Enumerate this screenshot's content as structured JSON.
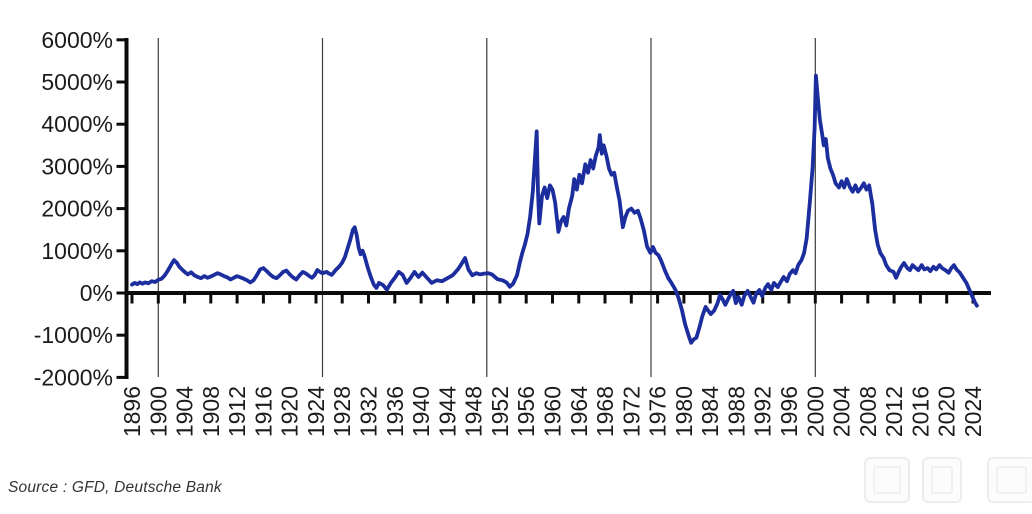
{
  "source_note": "Source : GFD, Deutsche Bank",
  "watermark": {
    "boxes": 3,
    "color": "#ededed"
  },
  "chart_data": {
    "type": "line",
    "title": "",
    "xlabel": "",
    "ylabel": "",
    "grid": "off",
    "legend": "none",
    "axis_position": "x-axis-at-zero",
    "xlim": [
      1896,
      2025
    ],
    "ylim": [
      -2000,
      6000
    ],
    "y_tick_suffix": "%",
    "y_ticks": [
      6000,
      5000,
      4000,
      3000,
      2000,
      1000,
      0,
      -1000,
      -2000
    ],
    "x_tick_labels": [
      1896,
      1900,
      1904,
      1908,
      1912,
      1916,
      1920,
      1924,
      1928,
      1932,
      1936,
      1940,
      1944,
      1948,
      1952,
      1956,
      1960,
      1964,
      1968,
      1972,
      1976,
      1980,
      1984,
      1988,
      1992,
      1996,
      2000,
      2004,
      2008,
      2012,
      2016,
      2020,
      2024
    ],
    "reference_line_years": [
      1900,
      1925,
      1950,
      1975,
      2000
    ],
    "series": [
      {
        "name": "rolling-return-percent",
        "color": "#1c2d9e",
        "points": [
          [
            1896.0,
            200
          ],
          [
            1896.4,
            240
          ],
          [
            1896.8,
            210
          ],
          [
            1897.2,
            250
          ],
          [
            1897.6,
            220
          ],
          [
            1898.0,
            250
          ],
          [
            1898.5,
            230
          ],
          [
            1899.0,
            280
          ],
          [
            1899.5,
            260
          ],
          [
            1900.0,
            310
          ],
          [
            1900.5,
            340
          ],
          [
            1901.0,
            420
          ],
          [
            1901.5,
            540
          ],
          [
            1902.0,
            680
          ],
          [
            1902.4,
            780
          ],
          [
            1902.8,
            720
          ],
          [
            1903.2,
            620
          ],
          [
            1903.6,
            560
          ],
          [
            1904.0,
            500
          ],
          [
            1904.5,
            440
          ],
          [
            1905.0,
            490
          ],
          [
            1905.5,
            420
          ],
          [
            1906.0,
            380
          ],
          [
            1906.5,
            350
          ],
          [
            1907.0,
            400
          ],
          [
            1907.5,
            360
          ],
          [
            1908.0,
            390
          ],
          [
            1908.5,
            430
          ],
          [
            1909.0,
            470
          ],
          [
            1909.5,
            440
          ],
          [
            1910.0,
            400
          ],
          [
            1910.5,
            370
          ],
          [
            1911.0,
            320
          ],
          [
            1911.5,
            360
          ],
          [
            1912.0,
            400
          ],
          [
            1912.5,
            370
          ],
          [
            1913.0,
            340
          ],
          [
            1913.5,
            300
          ],
          [
            1914.0,
            250
          ],
          [
            1914.5,
            300
          ],
          [
            1915.0,
            420
          ],
          [
            1915.5,
            560
          ],
          [
            1916.0,
            590
          ],
          [
            1916.5,
            520
          ],
          [
            1917.0,
            440
          ],
          [
            1917.5,
            380
          ],
          [
            1918.0,
            350
          ],
          [
            1918.5,
            420
          ],
          [
            1919.0,
            500
          ],
          [
            1919.5,
            530
          ],
          [
            1920.0,
            440
          ],
          [
            1920.5,
            370
          ],
          [
            1921.0,
            320
          ],
          [
            1921.5,
            420
          ],
          [
            1922.0,
            500
          ],
          [
            1922.5,
            460
          ],
          [
            1923.0,
            400
          ],
          [
            1923.4,
            360
          ],
          [
            1923.8,
            420
          ],
          [
            1924.2,
            545
          ],
          [
            1924.6,
            500
          ],
          [
            1925.0,
            470
          ],
          [
            1925.6,
            500
          ],
          [
            1926.0,
            460
          ],
          [
            1926.4,
            430
          ],
          [
            1927.0,
            545
          ],
          [
            1927.5,
            620
          ],
          [
            1928.0,
            720
          ],
          [
            1928.4,
            850
          ],
          [
            1928.8,
            1050
          ],
          [
            1929.2,
            1250
          ],
          [
            1929.6,
            1490
          ],
          [
            1929.9,
            1560
          ],
          [
            1930.2,
            1370
          ],
          [
            1930.5,
            1070
          ],
          [
            1930.8,
            920
          ],
          [
            1931.1,
            1000
          ],
          [
            1931.4,
            870
          ],
          [
            1931.9,
            590
          ],
          [
            1932.4,
            360
          ],
          [
            1932.8,
            200
          ],
          [
            1933.2,
            120
          ],
          [
            1933.6,
            240
          ],
          [
            1934.2,
            190
          ],
          [
            1934.8,
            80
          ],
          [
            1935.4,
            240
          ],
          [
            1936.0,
            360
          ],
          [
            1936.6,
            500
          ],
          [
            1937.2,
            430
          ],
          [
            1937.8,
            240
          ],
          [
            1938.4,
            360
          ],
          [
            1939.0,
            500
          ],
          [
            1939.6,
            380
          ],
          [
            1940.2,
            480
          ],
          [
            1940.8,
            380
          ],
          [
            1941.6,
            240
          ],
          [
            1942.4,
            300
          ],
          [
            1943.2,
            280
          ],
          [
            1944.0,
            350
          ],
          [
            1944.8,
            420
          ],
          [
            1945.6,
            560
          ],
          [
            1946.2,
            700
          ],
          [
            1946.7,
            830
          ],
          [
            1947.2,
            560
          ],
          [
            1947.8,
            420
          ],
          [
            1948.4,
            470
          ],
          [
            1949.0,
            440
          ],
          [
            1949.6,
            460
          ],
          [
            1950.2,
            470
          ],
          [
            1950.8,
            440
          ],
          [
            1951.6,
            330
          ],
          [
            1952.4,
            300
          ],
          [
            1953.0,
            250
          ],
          [
            1953.5,
            150
          ],
          [
            1954.0,
            220
          ],
          [
            1954.6,
            420
          ],
          [
            1955.0,
            700
          ],
          [
            1955.4,
            950
          ],
          [
            1955.8,
            1150
          ],
          [
            1956.2,
            1400
          ],
          [
            1956.6,
            1800
          ],
          [
            1957.0,
            2400
          ],
          [
            1957.3,
            3100
          ],
          [
            1957.6,
            3830
          ],
          [
            1957.8,
            2400
          ],
          [
            1958.0,
            1650
          ],
          [
            1958.4,
            2300
          ],
          [
            1958.8,
            2500
          ],
          [
            1959.2,
            2250
          ],
          [
            1959.6,
            2550
          ],
          [
            1960.0,
            2450
          ],
          [
            1960.4,
            2150
          ],
          [
            1960.9,
            1450
          ],
          [
            1961.3,
            1700
          ],
          [
            1961.7,
            1800
          ],
          [
            1962.1,
            1600
          ],
          [
            1962.5,
            2000
          ],
          [
            1963.0,
            2300
          ],
          [
            1963.3,
            2700
          ],
          [
            1963.7,
            2450
          ],
          [
            1964.1,
            2800
          ],
          [
            1964.5,
            2600
          ],
          [
            1965.0,
            3050
          ],
          [
            1965.4,
            2850
          ],
          [
            1965.8,
            3150
          ],
          [
            1966.2,
            2950
          ],
          [
            1966.6,
            3250
          ],
          [
            1967.0,
            3450
          ],
          [
            1967.2,
            3740
          ],
          [
            1967.5,
            3300
          ],
          [
            1967.8,
            3500
          ],
          [
            1968.2,
            3250
          ],
          [
            1968.6,
            2950
          ],
          [
            1969.0,
            2800
          ],
          [
            1969.4,
            2850
          ],
          [
            1969.8,
            2500
          ],
          [
            1970.2,
            2200
          ],
          [
            1970.7,
            1560
          ],
          [
            1971.1,
            1800
          ],
          [
            1971.5,
            1950
          ],
          [
            1972.0,
            2000
          ],
          [
            1972.5,
            1900
          ],
          [
            1973.0,
            1950
          ],
          [
            1973.4,
            1770
          ],
          [
            1973.9,
            1490
          ],
          [
            1974.4,
            1100
          ],
          [
            1974.9,
            950
          ],
          [
            1975.3,
            1090
          ],
          [
            1975.7,
            950
          ],
          [
            1976.1,
            900
          ],
          [
            1976.5,
            780
          ],
          [
            1977.1,
            540
          ],
          [
            1977.6,
            360
          ],
          [
            1978.1,
            240
          ],
          [
            1978.7,
            80
          ],
          [
            1979.2,
            -120
          ],
          [
            1979.7,
            -400
          ],
          [
            1980.2,
            -750
          ],
          [
            1980.7,
            -1000
          ],
          [
            1981.1,
            -1180
          ],
          [
            1981.5,
            -1100
          ],
          [
            1981.9,
            -1060
          ],
          [
            1982.4,
            -800
          ],
          [
            1982.8,
            -550
          ],
          [
            1983.3,
            -330
          ],
          [
            1983.7,
            -420
          ],
          [
            1984.1,
            -500
          ],
          [
            1984.6,
            -420
          ],
          [
            1985.1,
            -250
          ],
          [
            1985.5,
            -50
          ],
          [
            1985.9,
            -150
          ],
          [
            1986.3,
            -280
          ],
          [
            1986.8,
            -120
          ],
          [
            1987.2,
            0
          ],
          [
            1987.5,
            50
          ],
          [
            1987.9,
            -240
          ],
          [
            1988.3,
            -90
          ],
          [
            1988.8,
            -280
          ],
          [
            1989.2,
            -70
          ],
          [
            1989.7,
            50
          ],
          [
            1990.1,
            -70
          ],
          [
            1990.6,
            -230
          ],
          [
            1991.0,
            -20
          ],
          [
            1991.5,
            70
          ],
          [
            1991.9,
            -70
          ],
          [
            1992.4,
            120
          ],
          [
            1992.8,
            210
          ],
          [
            1993.3,
            70
          ],
          [
            1993.7,
            240
          ],
          [
            1994.3,
            140
          ],
          [
            1994.8,
            280
          ],
          [
            1995.2,
            380
          ],
          [
            1995.7,
            280
          ],
          [
            1996.1,
            450
          ],
          [
            1996.6,
            540
          ],
          [
            1997.0,
            470
          ],
          [
            1997.4,
            660
          ],
          [
            1997.9,
            780
          ],
          [
            1998.3,
            950
          ],
          [
            1998.7,
            1300
          ],
          [
            1999.2,
            2200
          ],
          [
            1999.6,
            3000
          ],
          [
            1999.9,
            3900
          ],
          [
            2000.1,
            5150
          ],
          [
            2000.4,
            4600
          ],
          [
            2000.7,
            4100
          ],
          [
            2001.0,
            3800
          ],
          [
            2001.3,
            3500
          ],
          [
            2001.6,
            3650
          ],
          [
            2001.9,
            3200
          ],
          [
            2002.3,
            2950
          ],
          [
            2002.7,
            2800
          ],
          [
            2003.1,
            2600
          ],
          [
            2003.6,
            2500
          ],
          [
            2004.0,
            2650
          ],
          [
            2004.4,
            2500
          ],
          [
            2004.8,
            2700
          ],
          [
            2005.3,
            2500
          ],
          [
            2005.7,
            2400
          ],
          [
            2006.1,
            2550
          ],
          [
            2006.5,
            2400
          ],
          [
            2007.0,
            2500
          ],
          [
            2007.4,
            2600
          ],
          [
            2007.8,
            2450
          ],
          [
            2008.2,
            2550
          ],
          [
            2008.7,
            2100
          ],
          [
            2009.1,
            1500
          ],
          [
            2009.5,
            1150
          ],
          [
            2009.9,
            950
          ],
          [
            2010.4,
            830
          ],
          [
            2010.8,
            660
          ],
          [
            2011.3,
            540
          ],
          [
            2011.9,
            500
          ],
          [
            2012.3,
            360
          ],
          [
            2012.7,
            500
          ],
          [
            2013.1,
            620
          ],
          [
            2013.5,
            710
          ],
          [
            2014.0,
            590
          ],
          [
            2014.4,
            540
          ],
          [
            2014.8,
            660
          ],
          [
            2015.3,
            590
          ],
          [
            2015.7,
            540
          ],
          [
            2016.2,
            660
          ],
          [
            2016.6,
            560
          ],
          [
            2017.1,
            590
          ],
          [
            2017.5,
            520
          ],
          [
            2018.0,
            620
          ],
          [
            2018.4,
            560
          ],
          [
            2018.9,
            660
          ],
          [
            2019.3,
            590
          ],
          [
            2019.8,
            540
          ],
          [
            2020.3,
            480
          ],
          [
            2020.7,
            590
          ],
          [
            2021.1,
            660
          ],
          [
            2021.5,
            560
          ],
          [
            2022.0,
            480
          ],
          [
            2022.5,
            360
          ],
          [
            2023.0,
            240
          ],
          [
            2023.5,
            60
          ],
          [
            2024.0,
            -120
          ],
          [
            2024.3,
            -220
          ],
          [
            2024.6,
            -300
          ]
        ]
      }
    ]
  }
}
